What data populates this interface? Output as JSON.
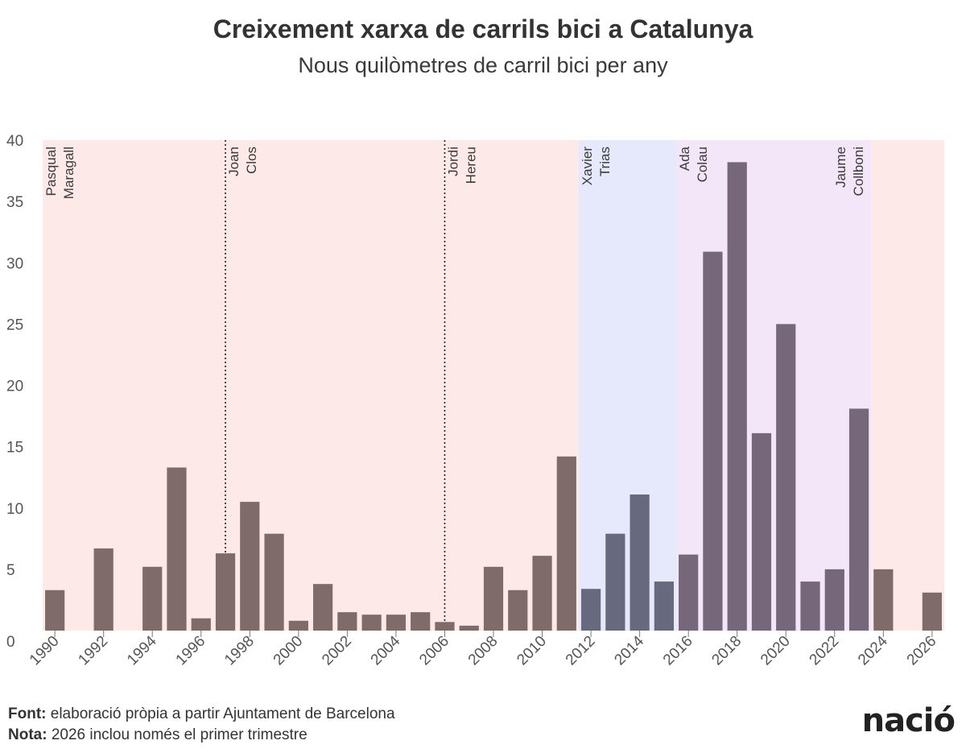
{
  "title": "Creixement xarxa de carrils bici a Catalunya",
  "subtitle": "Nous quilòmetres de carril bici per any",
  "footer": {
    "source_label": "Font:",
    "source_text": "elaboració pròpia a partir Ajuntament de Barcelona",
    "note_label": "Nota:",
    "note_text": "2026 inclou només el primer trimestre"
  },
  "logo": "nació",
  "chart_data": {
    "type": "bar",
    "title": "Creixement xarxa de carrils bici a Catalunya",
    "subtitle": "Nous quilòmetres de carril bici per any",
    "xlabel": "",
    "ylabel": "",
    "ylim": [
      0,
      40
    ],
    "yticks": [
      0,
      5,
      10,
      15,
      20,
      25,
      30,
      35,
      40
    ],
    "xlim": [
      1989.5,
      2026.5
    ],
    "xticks": [
      1990,
      1992,
      1994,
      1996,
      1998,
      2000,
      2002,
      2004,
      2006,
      2008,
      2010,
      2012,
      2014,
      2016,
      2018,
      2020,
      2022,
      2024,
      2026
    ],
    "x": [
      1990,
      1991,
      1992,
      1993,
      1994,
      1995,
      1996,
      1997,
      1998,
      1999,
      2000,
      2001,
      2002,
      2003,
      2004,
      2005,
      2006,
      2007,
      2008,
      2009,
      2010,
      2011,
      2012,
      2013,
      2014,
      2015,
      2016,
      2017,
      2018,
      2019,
      2020,
      2021,
      2022,
      2023,
      2024,
      2025,
      2026
    ],
    "values": [
      3.3,
      0,
      6.7,
      0,
      5.2,
      13.3,
      1.0,
      6.3,
      10.5,
      7.9,
      0.8,
      3.8,
      1.5,
      1.3,
      1.3,
      1.5,
      0.7,
      0.4,
      5.2,
      3.3,
      6.1,
      14.2,
      3.4,
      7.9,
      11.1,
      4.0,
      6.2,
      30.9,
      38.2,
      16.1,
      25.0,
      4.0,
      5.0,
      18.1,
      5.0,
      0,
      3.1
    ],
    "grid": false,
    "legend": "none",
    "periods": [
      {
        "name": [
          "Pasqual",
          "Maragall"
        ],
        "start": 1989.5,
        "end": 1997,
        "bg": "#fde9e8",
        "bar": "#7f6b6a",
        "divider": "none"
      },
      {
        "name": [
          "Joan",
          "Clos"
        ],
        "start": 1997,
        "end": 2006,
        "bg": "#fde9e8",
        "bar": "#7f6b6a",
        "divider": "dotted"
      },
      {
        "name": [
          "Jordi",
          "Hereu"
        ],
        "start": 2006,
        "end": 2011.5,
        "bg": "#fde9e8",
        "bar": "#7f6b6a",
        "divider": "dotted"
      },
      {
        "name": [
          "Xavier",
          "Trias"
        ],
        "start": 2011.5,
        "end": 2015.5,
        "bg": "#e6e8fb",
        "bar": "#676a7f",
        "divider": "none"
      },
      {
        "name": [
          "Ada",
          "Colau"
        ],
        "start": 2015.5,
        "end": 2023.5,
        "bg": "#f3e6f8",
        "bar": "#76677a",
        "divider": "none"
      },
      {
        "name": [
          "Jaume",
          "Collboni"
        ],
        "start": 2023.5,
        "end": 2026.5,
        "bg": "#fde9e8",
        "bar": "#7f6b6a",
        "divider": "none"
      }
    ]
  }
}
